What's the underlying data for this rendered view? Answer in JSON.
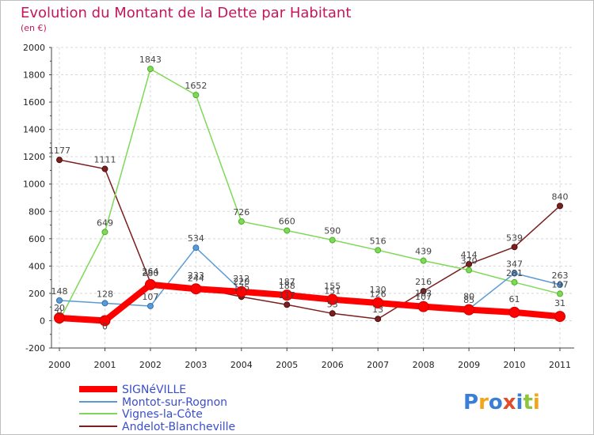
{
  "chart_data": {
    "type": "line",
    "title": "Evolution du Montant de la Dette par Habitant",
    "subtitle": "(en €)",
    "x": [
      "2000",
      "2001",
      "2002",
      "2003",
      "2004",
      "2005",
      "2006",
      "2007",
      "2008",
      "2009",
      "2010",
      "2011"
    ],
    "ylim": [
      -200,
      2000
    ],
    "yticks": [
      -200,
      0,
      200,
      400,
      600,
      800,
      1000,
      1200,
      1400,
      1600,
      1800,
      2000
    ],
    "grid": true,
    "legend_position": "bottom-left",
    "series": [
      {
        "name": "SIGNéVILLE",
        "color": "#ff0000",
        "values": [
          20,
          0,
          264,
          233,
          212,
          187,
          155,
          130,
          103,
          80,
          61,
          31
        ],
        "labels": [
          "20",
          "0",
          "264",
          "233",
          "212",
          "187",
          "155",
          "130",
          "103",
          "80",
          "61",
          "31"
        ]
      },
      {
        "name": "Montot-sur-Rognon",
        "color": "#5b9bd5",
        "values": [
          148,
          128,
          107,
          534,
          220,
          188,
          151,
          126,
          107,
          85,
          347,
          263
        ],
        "labels": [
          "148",
          "128",
          "107",
          "534",
          "220",
          "188",
          "151",
          "126",
          "107",
          "85",
          "347",
          "263"
        ]
      },
      {
        "name": "Vignes-la-Côte",
        "color": "#7ed957",
        "values": [
          0,
          649,
          1843,
          1652,
          726,
          660,
          590,
          516,
          439,
          370,
          281,
          197
        ],
        "labels": [
          "0",
          "649",
          "1843",
          "1652",
          "726",
          "660",
          "590",
          "516",
          "439",
          "370",
          "281",
          "197"
        ]
      },
      {
        "name": "Andelot-Blancheville",
        "color": "#7b1f1f",
        "values": [
          1177,
          1111,
          280,
          244,
          175,
          117,
          53,
          13,
          216,
          414,
          539,
          840
        ],
        "labels": [
          "1177",
          "1111",
          "280",
          "244",
          "175",
          "117",
          "53",
          "13",
          "216",
          "414",
          "539",
          "840"
        ]
      }
    ]
  },
  "logo": {
    "text": "Proxiti"
  }
}
